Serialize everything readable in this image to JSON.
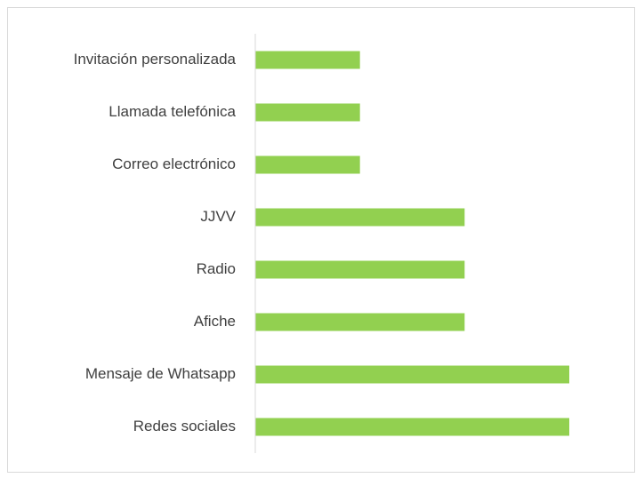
{
  "chart_data": {
    "type": "barh",
    "categories": [
      "Invitación personalizada",
      "Llamada telefónica",
      "Correo electrónico",
      "JJVV",
      "Radio",
      "Afiche",
      "Mensaje de Whatsapp",
      "Redes sociales"
    ],
    "values": [
      1,
      1,
      1,
      2,
      2,
      2,
      3,
      3
    ],
    "color": "#92d050",
    "xlim": [
      0,
      3
    ]
  }
}
